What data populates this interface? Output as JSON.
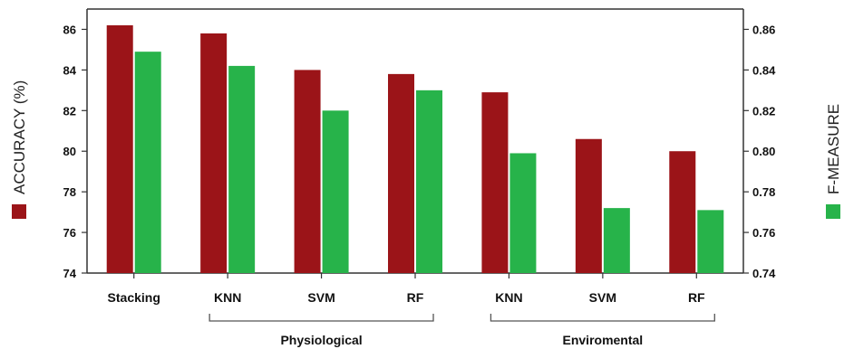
{
  "chart_data": {
    "type": "bar",
    "categories": [
      "Stacking",
      "KNN",
      "SVM",
      "RF",
      "KNN",
      "SVM",
      "RF"
    ],
    "groups": [
      {
        "label": "Physiological",
        "from": 1,
        "to": 3
      },
      {
        "label": "Enviromental",
        "from": 4,
        "to": 6
      }
    ],
    "series": [
      {
        "name": "ACCURACY (%)",
        "axis": "left",
        "color": "#9b1418",
        "values": [
          86.2,
          85.8,
          84.0,
          83.8,
          82.9,
          80.6,
          80.0
        ]
      },
      {
        "name": "F-MEASURE",
        "axis": "right",
        "color": "#27b34a",
        "values": [
          0.849,
          0.842,
          0.82,
          0.83,
          0.799,
          0.772,
          0.771
        ]
      }
    ],
    "left_axis": {
      "label": "ACCURACY (%)",
      "min": 74,
      "max": 87,
      "ticks": [
        74,
        76,
        78,
        80,
        82,
        84,
        86
      ],
      "tick_labels": [
        "74",
        "76",
        "78",
        "80",
        "82",
        "84",
        "86"
      ]
    },
    "right_axis": {
      "label": "F-MEASURE",
      "min": 0.74,
      "max": 0.87,
      "ticks": [
        0.74,
        0.76,
        0.78,
        0.8,
        0.82,
        0.84,
        0.86
      ],
      "tick_labels": [
        "0.74",
        "0.76",
        "0.78",
        "0.80",
        "0.82",
        "0.84",
        "0.86"
      ]
    },
    "grid": false,
    "legend": "axis-titles"
  }
}
